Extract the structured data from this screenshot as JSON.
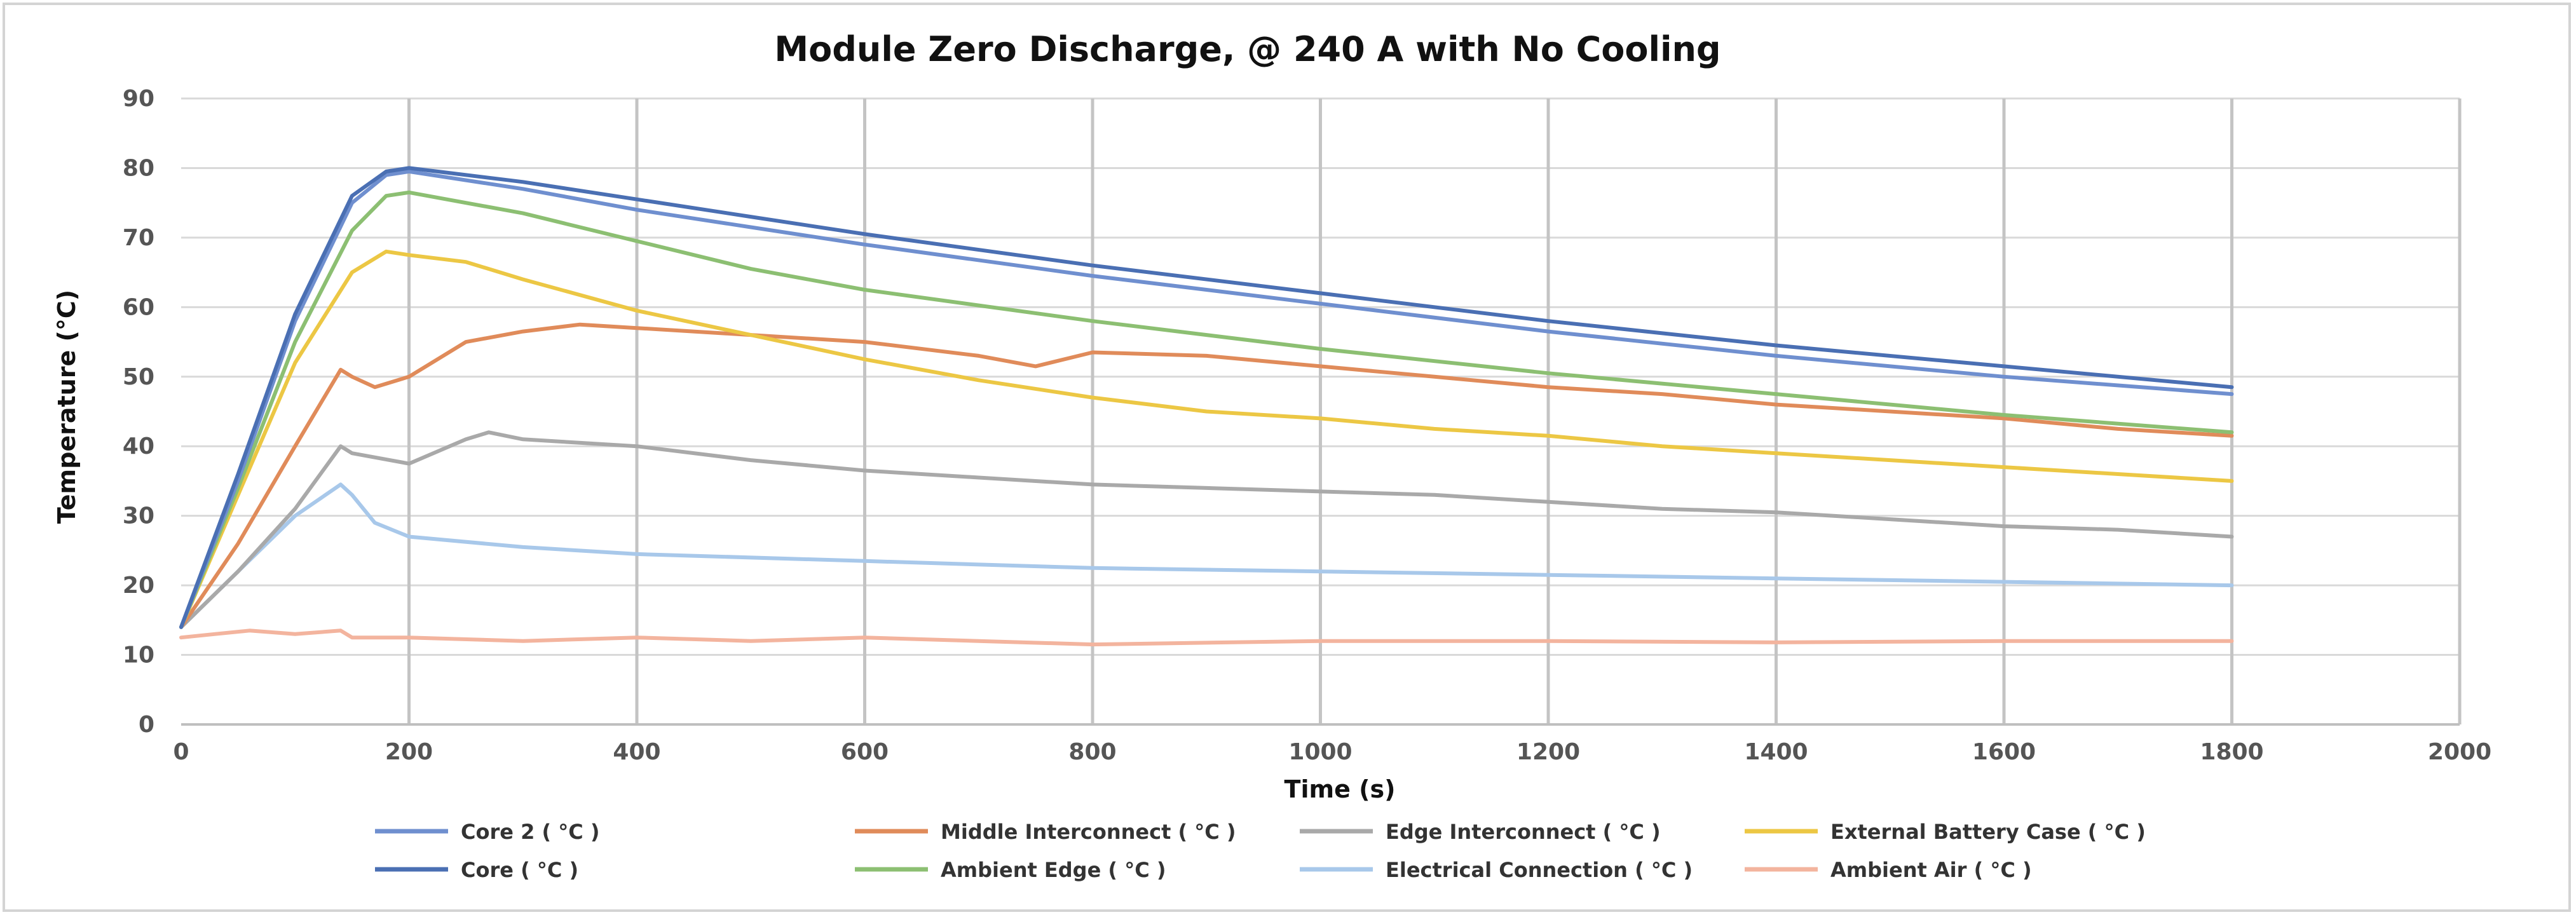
{
  "chart_data": {
    "type": "line",
    "title": "Module Zero Discharge, @ 240 A with No Cooling",
    "xlabel": "Time (s)",
    "ylabel": "Temperature (°C)",
    "xlim": [
      0,
      2000
    ],
    "ylim": [
      0,
      90
    ],
    "xticks": [
      "0",
      "200",
      "400",
      "600",
      "800",
      "1000",
      "1200",
      "1400",
      "1600",
      "1800",
      "2000"
    ],
    "yticks": [
      "0",
      "10",
      "20",
      "30",
      "40",
      "50",
      "60",
      "70",
      "80",
      "90"
    ],
    "grid": "on",
    "legend_position": "bottom",
    "series": [
      {
        "name": "Core 2 ( °C )",
        "color": "#6f8fcf",
        "x": [
          0,
          50,
          100,
          150,
          180,
          200,
          300,
          400,
          500,
          600,
          800,
          1000,
          1200,
          1400,
          1600,
          1800
        ],
        "y": [
          14,
          35,
          58,
          75,
          79,
          79.5,
          77,
          74,
          71.5,
          69,
          64.5,
          60.5,
          56.5,
          53,
          50,
          47.5
        ]
      },
      {
        "name": "Core ( °C )",
        "color": "#4a6fb3",
        "x": [
          0,
          50,
          100,
          150,
          180,
          200,
          300,
          400,
          500,
          600,
          800,
          1000,
          1200,
          1400,
          1600,
          1800
        ],
        "y": [
          14,
          36,
          59,
          76,
          79.5,
          80,
          78,
          75.5,
          73,
          70.5,
          66,
          62,
          58,
          54.5,
          51.5,
          48.5
        ]
      },
      {
        "name": "Middle Interconnect ( °C )",
        "color": "#e08b5a",
        "x": [
          0,
          50,
          100,
          140,
          150,
          170,
          200,
          250,
          300,
          350,
          400,
          500,
          600,
          700,
          750,
          800,
          900,
          1000,
          1100,
          1200,
          1300,
          1400,
          1500,
          1600,
          1700,
          1800
        ],
        "y": [
          14,
          26,
          40,
          51,
          50,
          48.5,
          50,
          55,
          56.5,
          57.5,
          57,
          56,
          55,
          53,
          51.5,
          53.5,
          53,
          51.5,
          50,
          48.5,
          47.5,
          46,
          45,
          44,
          42.5,
          41.5
        ]
      },
      {
        "name": "Edge Interconnect ( °C )",
        "color": "#a9a9a9",
        "x": [
          0,
          50,
          100,
          140,
          150,
          200,
          250,
          270,
          300,
          400,
          500,
          600,
          700,
          800,
          900,
          1000,
          1100,
          1200,
          1300,
          1400,
          1500,
          1600,
          1700,
          1800
        ],
        "y": [
          14,
          22,
          31,
          40,
          39,
          37.5,
          41,
          42,
          41,
          40,
          38,
          36.5,
          35.5,
          34.5,
          34,
          33.5,
          33,
          32,
          31,
          30.5,
          29.5,
          28.5,
          28,
          27
        ]
      },
      {
        "name": "External Battery Case ( °C )",
        "color": "#ecc744",
        "x": [
          0,
          50,
          100,
          150,
          180,
          200,
          250,
          300,
          400,
          500,
          600,
          700,
          800,
          900,
          1000,
          1100,
          1200,
          1300,
          1400,
          1500,
          1600,
          1700,
          1800
        ],
        "y": [
          14,
          33,
          52,
          65,
          68,
          67.5,
          66.5,
          64,
          59.5,
          56,
          52.5,
          49.5,
          47,
          45,
          44,
          42.5,
          41.5,
          40,
          39,
          38,
          37,
          36,
          35
        ]
      },
      {
        "name": "Ambient Edge ( °C )",
        "color": "#8cbf72",
        "x": [
          0,
          50,
          100,
          150,
          180,
          200,
          300,
          400,
          500,
          600,
          800,
          1000,
          1200,
          1400,
          1600,
          1800
        ],
        "y": [
          14,
          34,
          55,
          71,
          76,
          76.5,
          73.5,
          69.5,
          65.5,
          62.5,
          58,
          54,
          50.5,
          47.5,
          44.5,
          42
        ]
      },
      {
        "name": "Electrical Connection ( °C )",
        "color": "#a8c8ea",
        "x": [
          0,
          50,
          100,
          140,
          150,
          170,
          200,
          300,
          400,
          600,
          800,
          1000,
          1200,
          1400,
          1600,
          1800
        ],
        "y": [
          14,
          22,
          30,
          34.5,
          33,
          29,
          27,
          25.5,
          24.5,
          23.5,
          22.5,
          22,
          21.5,
          21,
          20.5,
          20
        ]
      },
      {
        "name": "Ambient Air ( °C )",
        "color": "#f3b49e",
        "x": [
          0,
          30,
          60,
          100,
          140,
          150,
          200,
          300,
          400,
          500,
          600,
          700,
          800,
          1000,
          1200,
          1400,
          1600,
          1800
        ],
        "y": [
          12.5,
          13,
          13.5,
          13,
          13.5,
          12.5,
          12.5,
          12,
          12.5,
          12,
          12.5,
          12,
          11.5,
          12,
          12,
          11.8,
          12,
          12
        ]
      }
    ]
  }
}
